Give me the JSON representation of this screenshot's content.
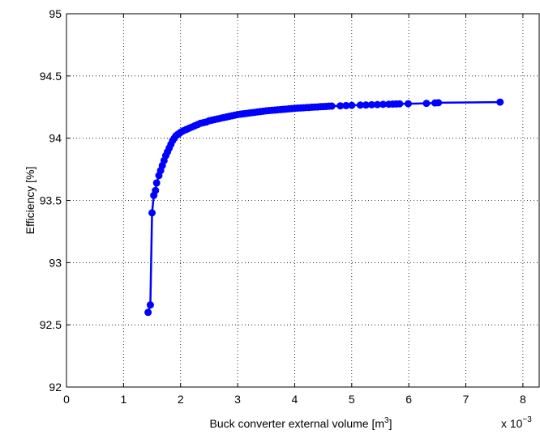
{
  "chart_data": {
    "type": "line",
    "title": "",
    "xlabel": "Buck converter external volume [m3]",
    "xlabel_parts": {
      "base": "Buck converter external volume [m",
      "superscript": "3",
      "suffix": "]"
    },
    "ylabel": "Efficiency [%]",
    "x_multiplier": {
      "base": "x 10",
      "exponent": "−3"
    },
    "xlim": [
      0,
      8.3
    ],
    "ylim": [
      92,
      95
    ],
    "x_ticks": [
      0,
      1,
      2,
      3,
      4,
      5,
      6,
      7,
      8
    ],
    "x_tick_labels": [
      "0",
      "1",
      "2",
      "3",
      "4",
      "5",
      "6",
      "7",
      "8"
    ],
    "y_ticks": [
      92,
      92.5,
      93,
      93.5,
      94,
      94.5,
      95
    ],
    "y_tick_labels": [
      "92",
      "92.5",
      "93",
      "93.5",
      "94",
      "94.5",
      "95"
    ],
    "grid": true,
    "grid_style": "dotted",
    "series": [
      {
        "color": "#0000ff",
        "marker": "circle",
        "x": [
          1.43,
          1.47,
          1.5,
          1.53,
          1.56,
          1.58,
          1.62,
          1.65,
          1.68,
          1.71,
          1.74,
          1.77,
          1.8,
          1.83,
          1.86,
          1.89,
          1.92,
          1.95,
          1.98,
          2.01,
          2.05,
          2.1,
          2.15,
          2.2,
          2.25,
          2.3,
          2.35,
          2.4,
          2.45,
          2.5,
          2.55,
          2.6,
          2.65,
          2.7,
          2.75,
          2.8,
          2.85,
          2.9,
          2.95,
          3.0,
          3.05,
          3.1,
          3.15,
          3.2,
          3.25,
          3.3,
          3.35,
          3.4,
          3.45,
          3.5,
          3.55,
          3.6,
          3.65,
          3.7,
          3.75,
          3.8,
          3.85,
          3.9,
          3.95,
          4.0,
          4.05,
          4.1,
          4.15,
          4.2,
          4.25,
          4.3,
          4.35,
          4.4,
          4.45,
          4.5,
          4.55,
          4.6,
          4.65,
          4.8,
          4.9,
          5.0,
          5.15,
          5.25,
          5.35,
          5.45,
          5.55,
          5.65,
          5.72,
          5.78,
          5.84,
          5.99,
          6.31,
          6.46,
          6.52,
          7.6
        ],
        "y": [
          92.6,
          92.66,
          93.4,
          93.54,
          93.58,
          93.64,
          93.7,
          93.74,
          93.78,
          93.82,
          93.86,
          93.89,
          93.92,
          93.95,
          93.98,
          94.0,
          94.02,
          94.03,
          94.04,
          94.05,
          94.06,
          94.07,
          94.08,
          94.09,
          94.1,
          94.11,
          94.12,
          94.125,
          94.13,
          94.14,
          94.145,
          94.15,
          94.155,
          94.16,
          94.165,
          94.17,
          94.175,
          94.18,
          94.185,
          94.19,
          94.193,
          94.196,
          94.199,
          94.202,
          94.205,
          94.208,
          94.211,
          94.214,
          94.217,
          94.22,
          94.222,
          94.224,
          94.226,
          94.228,
          94.23,
          94.232,
          94.234,
          94.236,
          94.238,
          94.24,
          94.242,
          94.243,
          94.244,
          94.246,
          94.247,
          94.249,
          94.25,
          94.251,
          94.253,
          94.254,
          94.255,
          94.257,
          94.258,
          94.26,
          94.262,
          94.264,
          94.266,
          94.267,
          94.269,
          94.27,
          94.272,
          94.273,
          94.274,
          94.275,
          94.276,
          94.277,
          94.28,
          94.283,
          94.285,
          94.29
        ]
      }
    ]
  }
}
